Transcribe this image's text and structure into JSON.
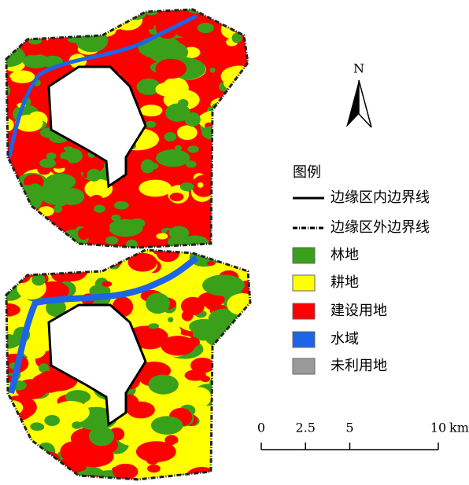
{
  "north": "N",
  "legend": {
    "title": "图例",
    "items": [
      {
        "label": "边缘区内边界线",
        "style": "solid"
      },
      {
        "label": "边缘区外边界线",
        "style": "dashdot"
      },
      {
        "label": "林地",
        "color": "#3aa01a"
      },
      {
        "label": "耕地",
        "color": "#ffff00"
      },
      {
        "label": "建设用地",
        "color": "#ff0000"
      },
      {
        "label": "水域",
        "color": "#1e64e6"
      },
      {
        "label": "未利用地",
        "color": "#9a9a9a"
      }
    ]
  },
  "scale_bar": {
    "ticks": [
      0,
      2.5,
      5,
      10
    ],
    "unit": "km"
  }
}
